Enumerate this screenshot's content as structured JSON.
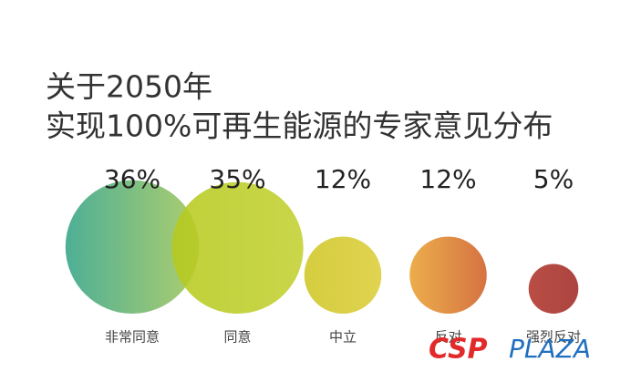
{
  "chart_data": {
    "type": "bubble",
    "title": [
      "关于2050年",
      "实现100%可再生能源的专家意见分布"
    ],
    "categories": [
      "非常同意",
      "同意",
      "中立",
      "反对",
      "强烈反对"
    ],
    "values": [
      36,
      35,
      12,
      12,
      5
    ],
    "value_labels": [
      "36%",
      "35%",
      "12%",
      "12%",
      "5%"
    ],
    "colors": [
      [
        "#35a487",
        "#a2c75a"
      ],
      [
        "#b5ca1e",
        "#c3d030"
      ],
      [
        "#cfc624",
        "#dccd38"
      ],
      [
        "#eaa232",
        "#cf5f28"
      ],
      [
        "#b0352b",
        "#a02a25"
      ]
    ],
    "watermark": [
      "CSP",
      "PLAZA"
    ]
  }
}
